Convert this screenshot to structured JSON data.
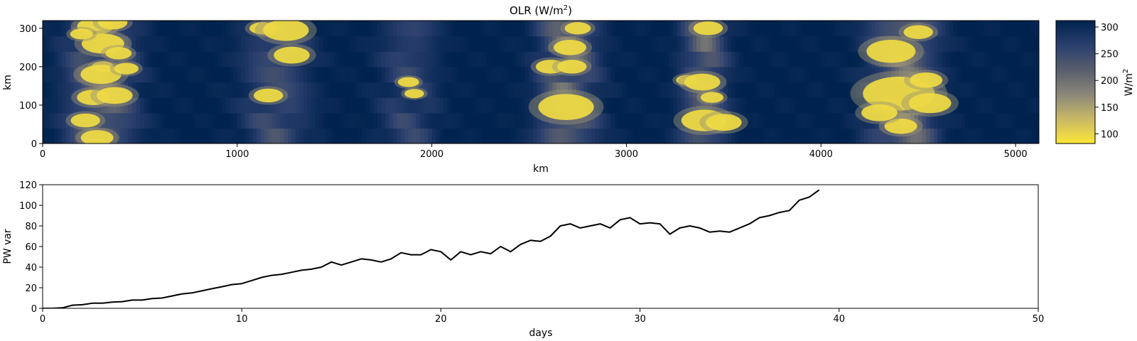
{
  "chart_data": [
    {
      "type": "heatmap",
      "title": "OLR (W/m",
      "title_superscript": "2",
      "title_close": ")",
      "xlabel": "km",
      "ylabel": "km",
      "xlim": [
        0,
        5120
      ],
      "ylim": [
        0,
        320
      ],
      "xticks": [
        0,
        1000,
        2000,
        3000,
        4000,
        5000
      ],
      "yticks": [
        0,
        100,
        200,
        300
      ],
      "colormap": "cividis_r",
      "colorbar": {
        "label": "W/m",
        "label_superscript": "2",
        "range": [
          82,
          312
        ],
        "ticks": [
          100,
          150,
          200,
          250,
          300
        ],
        "colors": [
          "#fde737",
          "#c8b866",
          "#8a8779",
          "#575d6d",
          "#2a3f6e",
          "#00224e"
        ]
      },
      "moist_bands": [
        {
          "center": 300,
          "halfwidth": 200,
          "strength": 0.9
        },
        {
          "center": 1200,
          "halfwidth": 200,
          "strength": 0.55
        },
        {
          "center": 1880,
          "halfwidth": 170,
          "strength": 0.45
        },
        {
          "center": 2700,
          "halfwidth": 170,
          "strength": 0.9
        },
        {
          "center": 3400,
          "halfwidth": 130,
          "strength": 0.8
        },
        {
          "center": 4420,
          "halfwidth": 190,
          "strength": 1.0
        }
      ],
      "cells": [
        {
          "x": 270,
          "y": 305,
          "r": 22
        },
        {
          "x": 360,
          "y": 315,
          "r": 18
        },
        {
          "x": 310,
          "y": 260,
          "r": 26
        },
        {
          "x": 200,
          "y": 285,
          "r": 14
        },
        {
          "x": 390,
          "y": 235,
          "r": 16
        },
        {
          "x": 310,
          "y": 200,
          "r": 14
        },
        {
          "x": 300,
          "y": 180,
          "r": 25
        },
        {
          "x": 430,
          "y": 195,
          "r": 15
        },
        {
          "x": 260,
          "y": 120,
          "r": 20
        },
        {
          "x": 370,
          "y": 125,
          "r": 22
        },
        {
          "x": 220,
          "y": 60,
          "r": 18
        },
        {
          "x": 280,
          "y": 15,
          "r": 20
        },
        {
          "x": 1130,
          "y": 300,
          "r": 16
        },
        {
          "x": 1250,
          "y": 295,
          "r": 28
        },
        {
          "x": 1280,
          "y": 230,
          "r": 22
        },
        {
          "x": 1160,
          "y": 125,
          "r": 18
        },
        {
          "x": 1880,
          "y": 160,
          "r": 13
        },
        {
          "x": 1910,
          "y": 130,
          "r": 12
        },
        {
          "x": 2610,
          "y": 200,
          "r": 18
        },
        {
          "x": 2710,
          "y": 250,
          "r": 20
        },
        {
          "x": 2720,
          "y": 200,
          "r": 18
        },
        {
          "x": 2690,
          "y": 95,
          "r": 34
        },
        {
          "x": 2750,
          "y": 300,
          "r": 16
        },
        {
          "x": 3310,
          "y": 165,
          "r": 13
        },
        {
          "x": 3390,
          "y": 160,
          "r": 22
        },
        {
          "x": 3400,
          "y": 60,
          "r": 28
        },
        {
          "x": 3500,
          "y": 55,
          "r": 22
        },
        {
          "x": 3440,
          "y": 120,
          "r": 14
        },
        {
          "x": 3420,
          "y": 300,
          "r": 18
        },
        {
          "x": 4360,
          "y": 240,
          "r": 30
        },
        {
          "x": 4400,
          "y": 130,
          "r": 44
        },
        {
          "x": 4540,
          "y": 165,
          "r": 20
        },
        {
          "x": 4560,
          "y": 105,
          "r": 26
        },
        {
          "x": 4410,
          "y": 45,
          "r": 20
        },
        {
          "x": 4300,
          "y": 80,
          "r": 22
        },
        {
          "x": 4500,
          "y": 290,
          "r": 18
        }
      ]
    },
    {
      "type": "line",
      "title": "",
      "xlabel": "days",
      "ylabel": "PW var",
      "xlim": [
        0,
        50
      ],
      "ylim": [
        0,
        120
      ],
      "xticks": [
        0,
        10,
        20,
        30,
        40,
        50
      ],
      "yticks": [
        0,
        20,
        40,
        60,
        80,
        100,
        120
      ],
      "color": "#000000",
      "x": [
        0,
        0.5,
        1.0,
        1.5,
        2.0,
        2.5,
        3.0,
        3.5,
        4.0,
        4.5,
        5.0,
        5.5,
        6.0,
        6.5,
        7.0,
        7.5,
        8.0,
        8.5,
        9.0,
        9.5,
        10.0,
        10.5,
        11.0,
        11.5,
        12.0,
        12.5,
        13.0,
        13.5,
        14.0,
        14.5,
        15.0,
        15.5,
        16.0,
        16.5,
        17.0,
        17.5,
        18.0,
        18.5,
        19.0,
        19.5,
        20.0,
        20.5,
        21.0,
        21.5,
        22.0,
        22.5,
        23.0,
        23.5,
        24.0,
        24.5,
        25.0,
        25.5,
        26.0,
        26.5,
        27.0,
        27.5,
        28.0,
        28.5,
        29.0,
        29.5,
        30.0,
        30.5,
        31.0,
        31.5,
        32.0,
        32.5,
        33.0,
        33.5,
        34.0,
        34.5,
        35.0,
        35.5,
        36.0,
        36.5,
        37.0,
        37.5,
        38.0,
        38.5,
        39.0
      ],
      "y": [
        0,
        0,
        0.5,
        3,
        3.5,
        5,
        5,
        6,
        6.5,
        8,
        8,
        9.5,
        10,
        12,
        14,
        15,
        17,
        19,
        21,
        23,
        24,
        27,
        30,
        32,
        33,
        35,
        37,
        38,
        40,
        45,
        42,
        45,
        48,
        47,
        45,
        48,
        54,
        52,
        52,
        57,
        55,
        47,
        55,
        52,
        55,
        53,
        60,
        55,
        62,
        66,
        65,
        70,
        80,
        82,
        78,
        80,
        82,
        78,
        86,
        88,
        82,
        83,
        82,
        72,
        78,
        80,
        78,
        74,
        75,
        74,
        78,
        82,
        88,
        90,
        93,
        95,
        105,
        108,
        115
      ]
    }
  ]
}
